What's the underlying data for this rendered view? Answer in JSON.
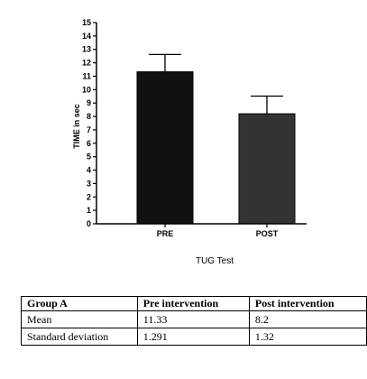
{
  "chart_data": {
    "type": "bar",
    "categories": [
      "PRE",
      "POST"
    ],
    "values": [
      11.33,
      8.2
    ],
    "error": [
      1.291,
      1.32
    ],
    "colors": [
      "#111111",
      "#333333"
    ],
    "xlabel": "TUG Test",
    "ylabel": "TIME in sec",
    "ylim": [
      0,
      15
    ],
    "yticks": [
      0,
      1,
      2,
      3,
      4,
      5,
      6,
      7,
      8,
      9,
      10,
      11,
      12,
      13,
      14,
      15
    ],
    "grid": false
  },
  "table": {
    "headers": [
      "Group A",
      "Pre intervention",
      "Post intervention"
    ],
    "rows": [
      [
        "Mean",
        "11.33",
        "8.2"
      ],
      [
        "Standard deviation",
        "1.291",
        "1.32"
      ]
    ]
  }
}
